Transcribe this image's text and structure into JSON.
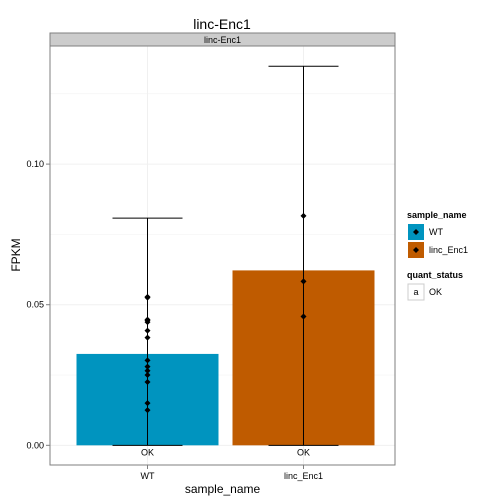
{
  "chart_data": {
    "type": "bar",
    "title": "linc-Enc1",
    "facet_label": "linc-Enc1",
    "xlabel": "sample_name",
    "ylabel": "FPKM",
    "categories": [
      "WT",
      "linc_Enc1"
    ],
    "values": [
      0.0325,
      0.0622
    ],
    "error_bars": [
      {
        "low": 0.0,
        "high": 0.0808
      },
      {
        "low": 0.0,
        "high": 0.1348
      }
    ],
    "points": [
      [
        0.0125,
        0.015,
        0.0225,
        0.025,
        0.0265,
        0.028,
        0.0302,
        0.0383,
        0.0408,
        0.0438,
        0.0444,
        0.0447,
        0.0525,
        0.0528
      ],
      [
        0.0458,
        0.0583,
        0.0816
      ]
    ],
    "quant_status_labels": [
      "OK",
      "OK"
    ],
    "yticks": [
      0.0,
      0.05,
      0.1
    ],
    "ytick_labels": [
      "0.00",
      "0.05",
      "0.10"
    ],
    "ylim": [
      -0.007,
      0.142
    ],
    "grid": true,
    "legend_position": "right",
    "legends": [
      {
        "title": "sample_name",
        "entries": [
          {
            "label": "WT",
            "color": "#0094bf"
          },
          {
            "label": "linc_Enc1",
            "color": "#bf5b00"
          }
        ]
      },
      {
        "title": "quant_status",
        "entries": [
          {
            "label": "OK",
            "key_glyph": "a"
          }
        ]
      }
    ],
    "colors": {
      "panel_background": "#ffffff",
      "grid": "#f0f0f0",
      "strip_background": "#cccccc",
      "border": "#7f7f7f"
    }
  }
}
